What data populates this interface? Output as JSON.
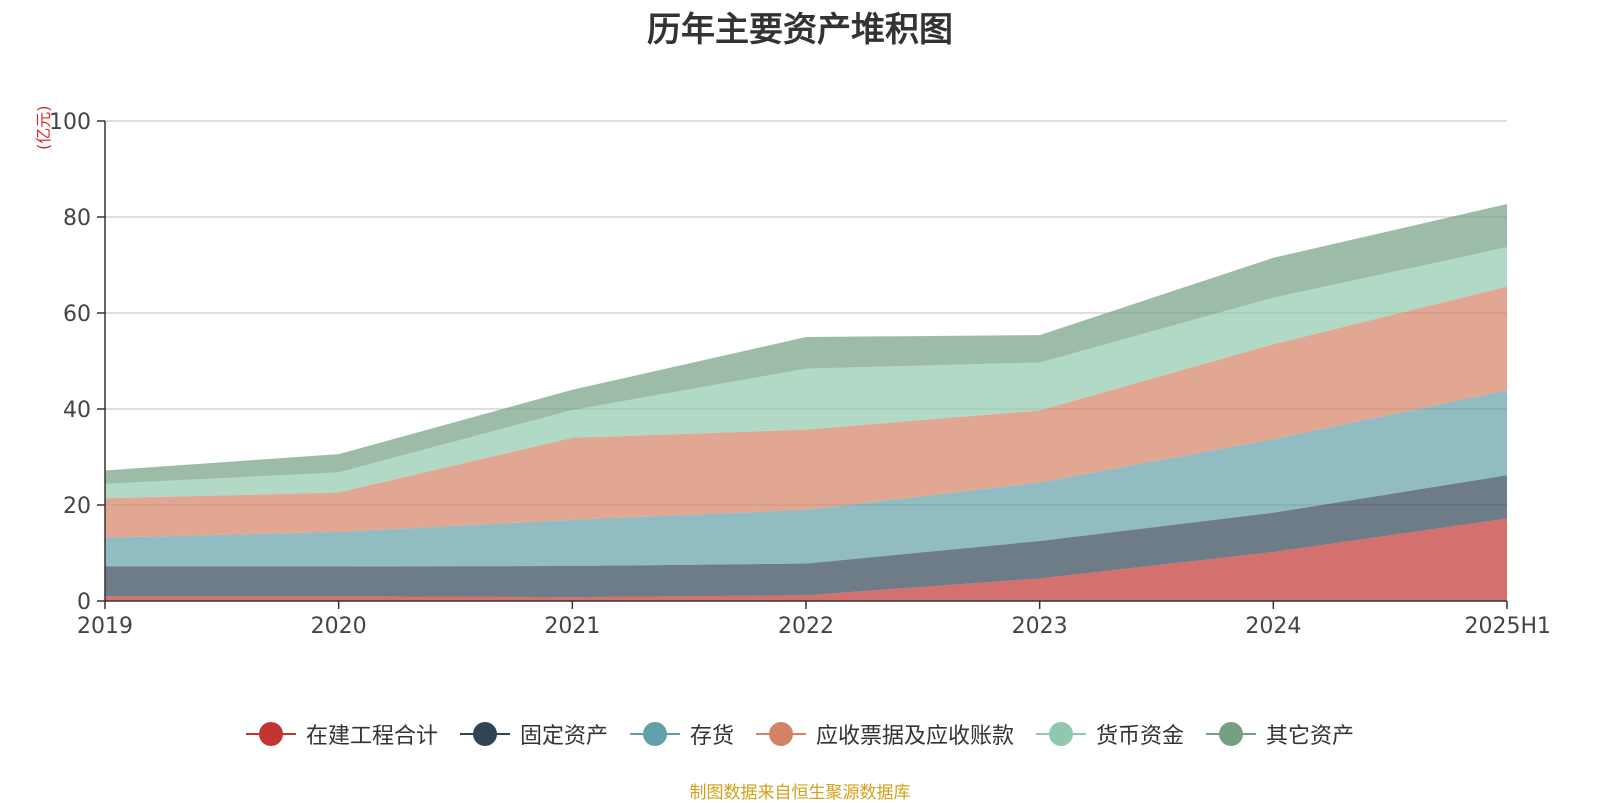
{
  "chart_data": {
    "type": "area",
    "stacked": true,
    "title": "历年主要资产堆积图",
    "unit": "(亿元)",
    "categories": [
      "2019",
      "2020",
      "2021",
      "2022",
      "2023",
      "2024",
      "2025H1"
    ],
    "ylim": [
      0,
      100
    ],
    "yticks": [
      0,
      20,
      40,
      60,
      80,
      100
    ],
    "grid": true,
    "legend_position": "bottom",
    "series": [
      {
        "name": "在建工程合计",
        "color": "#c23531",
        "values": [
          1.0,
          1.0,
          0.8,
          1.2,
          4.7,
          10.2,
          17.2
        ]
      },
      {
        "name": "固定资产",
        "color": "#2f4554",
        "values": [
          6.2,
          6.2,
          6.5,
          6.6,
          7.8,
          8.2,
          9.0
        ]
      },
      {
        "name": "存货",
        "color": "#61a0a8",
        "values": [
          6.0,
          7.2,
          9.6,
          11.2,
          12.2,
          15.3,
          17.7
        ]
      },
      {
        "name": "应收票据及应收账款",
        "color": "#d48265",
        "values": [
          8.2,
          8.2,
          17.1,
          16.7,
          15.0,
          19.8,
          21.6
        ]
      },
      {
        "name": "货币资金",
        "color": "#91c7ae",
        "values": [
          3.0,
          4.2,
          5.8,
          12.7,
          10.0,
          9.7,
          8.2
        ]
      },
      {
        "name": "其它资产",
        "color": "#749f83",
        "values": [
          2.8,
          3.8,
          4.2,
          6.6,
          5.7,
          8.3,
          9.0
        ]
      }
    ]
  },
  "footer": {
    "source": "制图数据来自恒生聚源数据库"
  }
}
